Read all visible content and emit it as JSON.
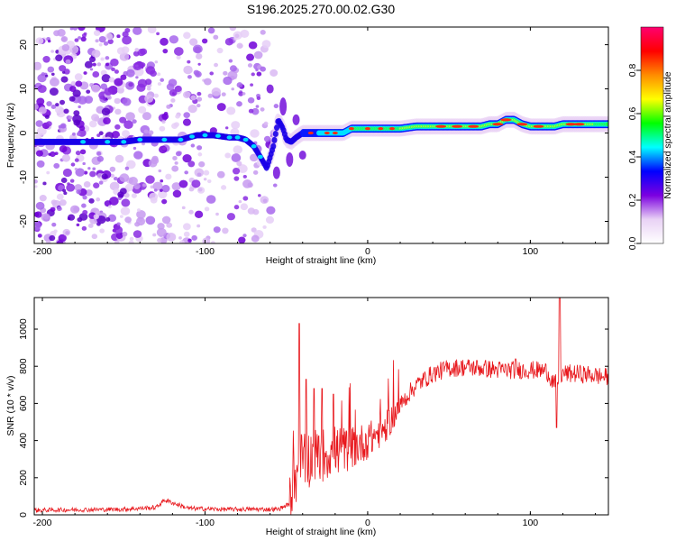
{
  "title": "S196.2025.270.00.02.G30",
  "chart_data": [
    {
      "type": "heatmap",
      "name": "spectrogram",
      "xlabel": "Height of straight line (km)",
      "ylabel": "Frequency (Hz)",
      "xlim": [
        -205,
        148
      ],
      "ylim": [
        -25,
        24
      ],
      "xticks": [
        -200,
        -100,
        0,
        100
      ],
      "yticks": [
        -20,
        -10,
        0,
        10,
        20
      ],
      "ridge": {
        "description": "dominant frequency track vs height",
        "x": [
          -205,
          -180,
          -160,
          -150,
          -140,
          -125,
          -115,
          -105,
          -95,
          -85,
          -80,
          -75,
          -70,
          -65,
          -62,
          -58,
          -55,
          -52,
          -50,
          -47,
          -44,
          -40,
          -35,
          -30,
          -25,
          -20,
          -15,
          -10,
          -5,
          0,
          10,
          20,
          30,
          40,
          50,
          60,
          70,
          75,
          80,
          85,
          90,
          95,
          100,
          105,
          110,
          115,
          120,
          130,
          140,
          148
        ],
        "y": [
          -2,
          -2,
          -2,
          -2,
          -1.5,
          -1.5,
          -1.5,
          -0.5,
          -0.5,
          -1,
          -1,
          -1.5,
          -3,
          -6,
          -8,
          -3,
          3,
          1,
          -1.5,
          -2,
          -1,
          0,
          0,
          0,
          0,
          0,
          0,
          1,
          1,
          1,
          1,
          1,
          1.5,
          1.5,
          1.5,
          1.5,
          1.5,
          2,
          2,
          3,
          3,
          2,
          1.5,
          1.5,
          1.5,
          1.5,
          2,
          2,
          2,
          2
        ]
      },
      "colorbar": {
        "label": "Normalized spectral amplitude",
        "range": [
          0.0,
          1.0
        ],
        "ticks": [
          "0.0",
          "0.2",
          "0.4",
          "0.6",
          "0.8"
        ],
        "tick_values": [
          0.0,
          0.2,
          0.4,
          0.6,
          0.8
        ],
        "colors": [
          "#ffffff",
          "#e9d2f5",
          "#7b00e0",
          "#0000ff",
          "#00ffff",
          "#00ff00",
          "#ffff00",
          "#ff8c00",
          "#ff0000",
          "#ff0070"
        ]
      }
    },
    {
      "type": "line",
      "name": "snr",
      "xlabel": "Height of straight line (km)",
      "ylabel": "SNR (10 * v/v)",
      "xlim": [
        -205,
        148
      ],
      "ylim": [
        0,
        1170
      ],
      "xticks": [
        -200,
        -100,
        0,
        100
      ],
      "yticks": [
        0,
        200,
        400,
        600,
        800,
        1000
      ],
      "color": "#e8171c",
      "trend": {
        "x": [
          -205,
          -150,
          -130,
          -125,
          -110,
          -90,
          -70,
          -55,
          -48,
          -44,
          -40,
          -35,
          -30,
          -25,
          -20,
          -15,
          -10,
          -5,
          0,
          5,
          10,
          15,
          20,
          25,
          30,
          40,
          50,
          60,
          70,
          80,
          90,
          100,
          110,
          115,
          120,
          130,
          140,
          148
        ],
        "y": [
          25,
          30,
          40,
          80,
          35,
          30,
          30,
          30,
          60,
          220,
          290,
          310,
          320,
          330,
          340,
          350,
          360,
          380,
          400,
          430,
          460,
          520,
          590,
          650,
          700,
          760,
          790,
          795,
          790,
          780,
          780,
          780,
          775,
          700,
          760,
          760,
          750,
          740
        ]
      },
      "spikes": [
        {
          "x": -42,
          "y": 1030
        },
        {
          "x": -38,
          "y": 730
        },
        {
          "x": -33,
          "y": 680
        },
        {
          "x": -28,
          "y": 680
        },
        {
          "x": -21,
          "y": 650
        },
        {
          "x": 91,
          "y": 840
        },
        {
          "x": 116,
          "y": 470
        },
        {
          "x": 118,
          "y": 1170
        }
      ]
    }
  ]
}
